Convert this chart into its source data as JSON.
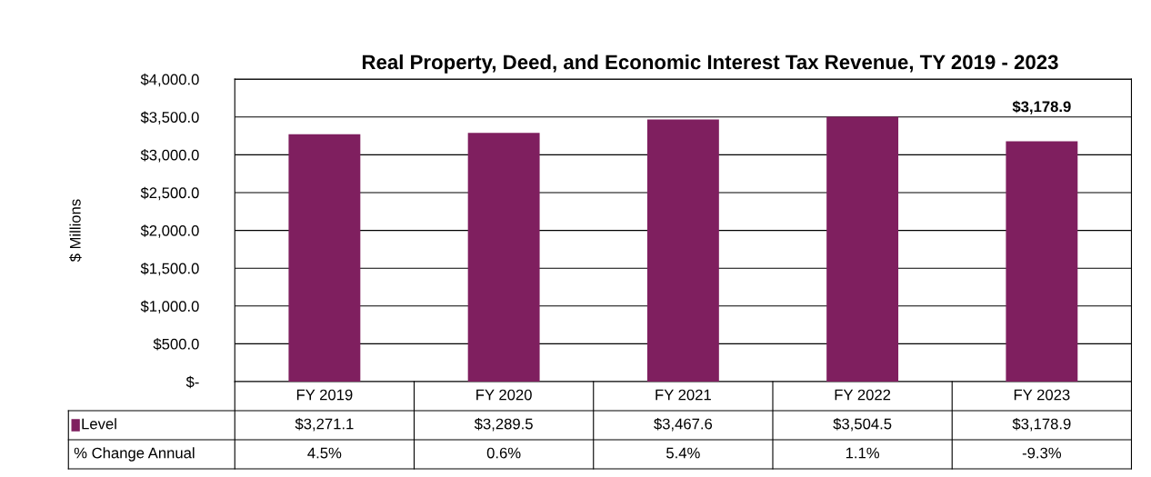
{
  "chart_data": {
    "type": "bar",
    "title": "Real Property, Deed, and Economic Interest Tax Revenue, TY 2019 - 2023",
    "ylabel": "$ Millions",
    "categories": [
      "FY 2019",
      "FY 2020",
      "FY 2021",
      "FY 2022",
      "FY 2023"
    ],
    "series": [
      {
        "name": "Level",
        "color": "#7f1f5f",
        "values": [
          3271.1,
          3289.5,
          3467.6,
          3504.5,
          3178.9
        ],
        "value_labels": [
          "$3,271.1",
          "$3,289.5",
          "$3,467.6",
          "$3,504.5",
          "$3,178.9"
        ]
      }
    ],
    "ylim": [
      0,
      4000
    ],
    "yticks": [
      {
        "value": 0,
        "label": "$-"
      },
      {
        "value": 500,
        "label": "$500.0"
      },
      {
        "value": 1000,
        "label": "$1,000.0"
      },
      {
        "value": 1500,
        "label": "$1,500.0"
      },
      {
        "value": 2000,
        "label": "$2,000.0"
      },
      {
        "value": 2500,
        "label": "$2,500.0"
      },
      {
        "value": 3000,
        "label": "$3,000.0"
      },
      {
        "value": 3500,
        "label": "$3,500.0"
      },
      {
        "value": 4000,
        "label": "$4,000.0"
      }
    ],
    "grid": "y",
    "annotations": [
      "$3,178.9",
      "% Change Annual",
      "4.5%",
      "0.6%",
      "5.4%",
      "1.1%",
      "-9.3%"
    ]
  }
}
